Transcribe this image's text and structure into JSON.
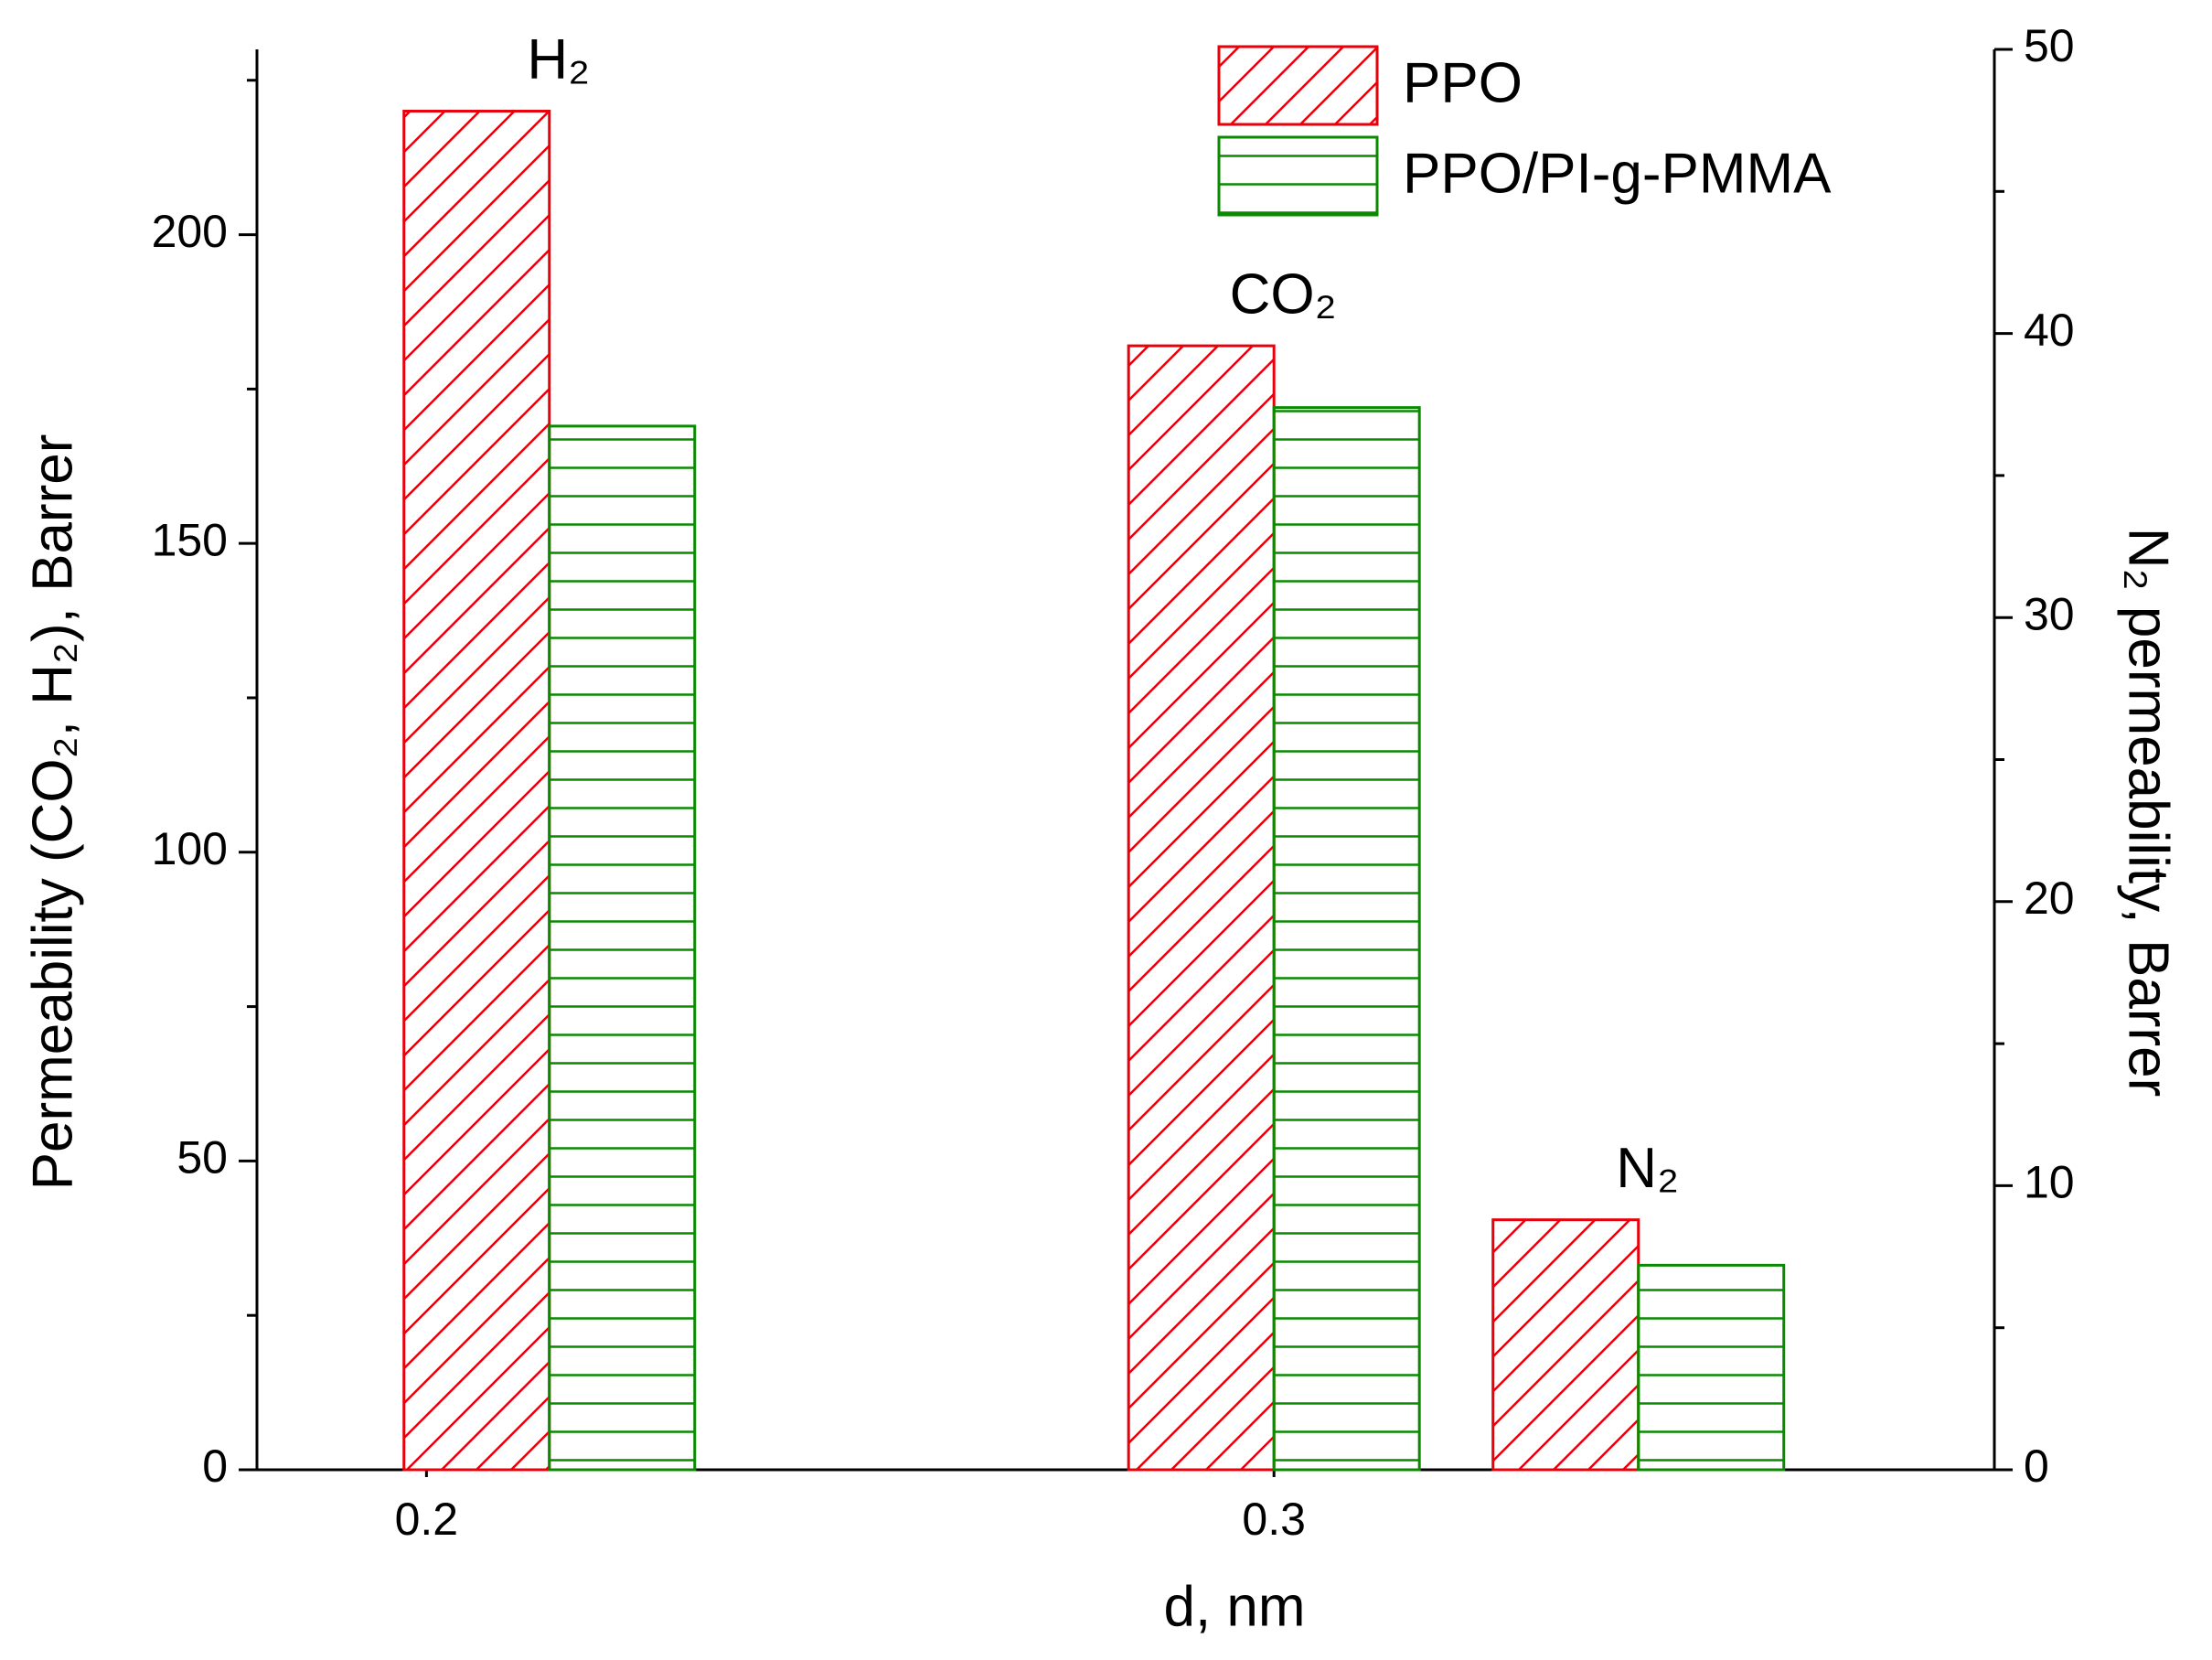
{
  "chart_data": {
    "type": "bar",
    "xlabel": "d, nm",
    "ylabel": "Permeability (CO₂, H₂), Barrer",
    "y2label": "N₂ permeability, Barrer",
    "xlim": [
      0.18,
      0.385
    ],
    "xticks": [
      0.2,
      0.3
    ],
    "ylim": [
      0,
      230
    ],
    "yticks": [
      0,
      50,
      100,
      150,
      200
    ],
    "yminorticks": [
      25,
      75,
      125,
      175,
      225
    ],
    "y2lim": [
      0,
      50
    ],
    "y2ticks": [
      0,
      10,
      20,
      30,
      40,
      50
    ],
    "y2minorticks": [
      5,
      15,
      25,
      35,
      45
    ],
    "annotations": [
      "H₂",
      "CO₂",
      "N₂"
    ],
    "x": [
      0.2145,
      0.3,
      0.343
    ],
    "point_axes": [
      "y",
      "y",
      "y2"
    ],
    "legend": "top-right",
    "series": [
      {
        "name": "PPO",
        "color": "#e8000b",
        "hatch": "diagonal",
        "values": [
          220,
          182,
          8.8
        ]
      },
      {
        "name": "PPO/PI-g-PMMA",
        "color": "#0a8a00",
        "hatch": "horizontal",
        "values": [
          169,
          172,
          7.2
        ]
      }
    ]
  }
}
